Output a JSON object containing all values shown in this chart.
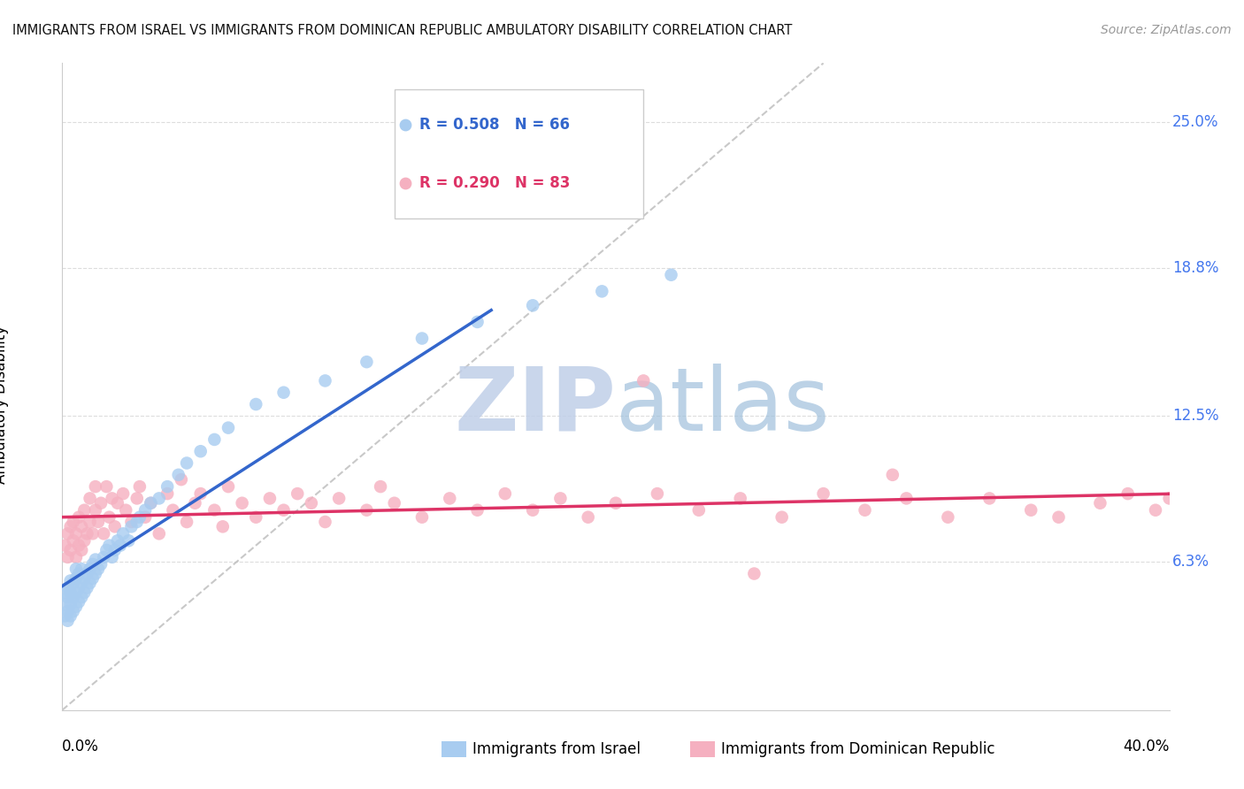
{
  "title": "IMMIGRANTS FROM ISRAEL VS IMMIGRANTS FROM DOMINICAN REPUBLIC AMBULATORY DISABILITY CORRELATION CHART",
  "source": "Source: ZipAtlas.com",
  "ylabel": "Ambulatory Disability",
  "ytick_labels": [
    "6.3%",
    "12.5%",
    "18.8%",
    "25.0%"
  ],
  "ytick_values": [
    0.063,
    0.125,
    0.188,
    0.25
  ],
  "xmin": 0.0,
  "xmax": 0.4,
  "ymin": 0.0,
  "ymax": 0.275,
  "legend1_label": "R = 0.508   N = 66",
  "legend2_label": "R = 0.290   N = 83",
  "series1_name": "Immigrants from Israel",
  "series2_name": "Immigrants from Dominican Republic",
  "series1_color": "#a8ccf0",
  "series2_color": "#f5b0c0",
  "trend1_color": "#3366cc",
  "trend2_color": "#dd3366",
  "diag_color": "#bbbbbb",
  "grid_color": "#dddddd",
  "title_color": "#111111",
  "source_color": "#999999",
  "watermark_zip_color": "#c5d5e8",
  "watermark_atlas_color": "#9ab8d8",
  "israel_x": [
    0.001,
    0.001,
    0.001,
    0.002,
    0.002,
    0.002,
    0.002,
    0.003,
    0.003,
    0.003,
    0.003,
    0.004,
    0.004,
    0.004,
    0.005,
    0.005,
    0.005,
    0.005,
    0.006,
    0.006,
    0.006,
    0.007,
    0.007,
    0.007,
    0.008,
    0.008,
    0.009,
    0.009,
    0.01,
    0.01,
    0.011,
    0.011,
    0.012,
    0.012,
    0.013,
    0.014,
    0.015,
    0.016,
    0.017,
    0.018,
    0.019,
    0.02,
    0.021,
    0.022,
    0.024,
    0.025,
    0.027,
    0.028,
    0.03,
    0.032,
    0.035,
    0.038,
    0.042,
    0.045,
    0.05,
    0.055,
    0.06,
    0.07,
    0.08,
    0.095,
    0.11,
    0.13,
    0.15,
    0.17,
    0.195,
    0.22
  ],
  "israel_y": [
    0.04,
    0.045,
    0.05,
    0.038,
    0.042,
    0.048,
    0.052,
    0.04,
    0.045,
    0.05,
    0.055,
    0.042,
    0.048,
    0.054,
    0.044,
    0.05,
    0.056,
    0.06,
    0.046,
    0.052,
    0.058,
    0.048,
    0.054,
    0.06,
    0.05,
    0.056,
    0.052,
    0.058,
    0.054,
    0.06,
    0.056,
    0.062,
    0.058,
    0.064,
    0.06,
    0.062,
    0.065,
    0.068,
    0.07,
    0.065,
    0.068,
    0.072,
    0.07,
    0.075,
    0.072,
    0.078,
    0.08,
    0.082,
    0.085,
    0.088,
    0.09,
    0.095,
    0.1,
    0.105,
    0.11,
    0.115,
    0.12,
    0.13,
    0.135,
    0.14,
    0.148,
    0.158,
    0.165,
    0.172,
    0.178,
    0.185
  ],
  "dominican_x": [
    0.001,
    0.002,
    0.002,
    0.003,
    0.003,
    0.004,
    0.004,
    0.005,
    0.005,
    0.006,
    0.006,
    0.007,
    0.007,
    0.008,
    0.008,
    0.009,
    0.01,
    0.01,
    0.011,
    0.012,
    0.012,
    0.013,
    0.014,
    0.015,
    0.016,
    0.017,
    0.018,
    0.019,
    0.02,
    0.022,
    0.023,
    0.025,
    0.027,
    0.028,
    0.03,
    0.032,
    0.035,
    0.038,
    0.04,
    0.043,
    0.045,
    0.048,
    0.05,
    0.055,
    0.058,
    0.06,
    0.065,
    0.07,
    0.075,
    0.08,
    0.085,
    0.09,
    0.095,
    0.1,
    0.11,
    0.115,
    0.12,
    0.13,
    0.14,
    0.15,
    0.16,
    0.17,
    0.18,
    0.19,
    0.2,
    0.215,
    0.23,
    0.245,
    0.26,
    0.275,
    0.29,
    0.305,
    0.32,
    0.335,
    0.35,
    0.36,
    0.375,
    0.385,
    0.395,
    0.4,
    0.21,
    0.25,
    0.3
  ],
  "dominican_y": [
    0.07,
    0.065,
    0.075,
    0.068,
    0.078,
    0.072,
    0.08,
    0.065,
    0.075,
    0.07,
    0.082,
    0.068,
    0.078,
    0.072,
    0.085,
    0.075,
    0.08,
    0.09,
    0.075,
    0.085,
    0.095,
    0.08,
    0.088,
    0.075,
    0.095,
    0.082,
    0.09,
    0.078,
    0.088,
    0.092,
    0.085,
    0.08,
    0.09,
    0.095,
    0.082,
    0.088,
    0.075,
    0.092,
    0.085,
    0.098,
    0.08,
    0.088,
    0.092,
    0.085,
    0.078,
    0.095,
    0.088,
    0.082,
    0.09,
    0.085,
    0.092,
    0.088,
    0.08,
    0.09,
    0.085,
    0.095,
    0.088,
    0.082,
    0.09,
    0.085,
    0.092,
    0.085,
    0.09,
    0.082,
    0.088,
    0.092,
    0.085,
    0.09,
    0.082,
    0.092,
    0.085,
    0.09,
    0.082,
    0.09,
    0.085,
    0.082,
    0.088,
    0.092,
    0.085,
    0.09,
    0.14,
    0.058,
    0.1
  ]
}
